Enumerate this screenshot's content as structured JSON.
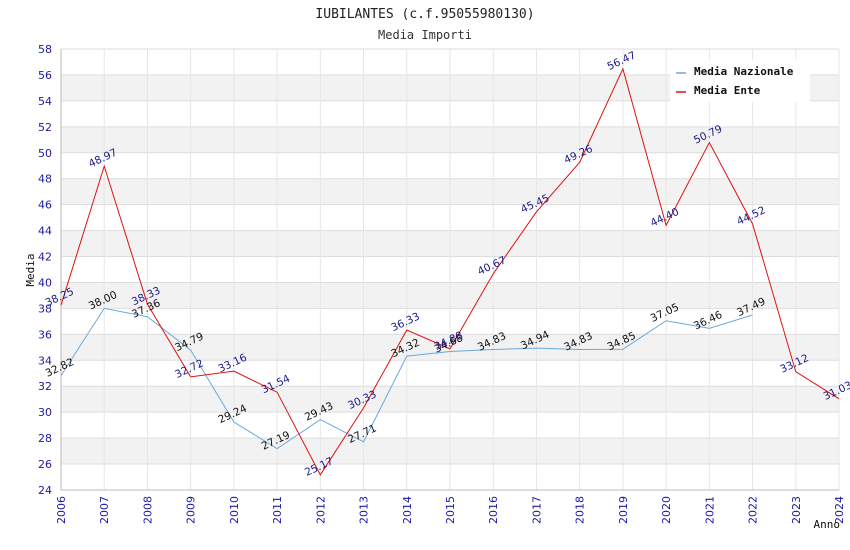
{
  "chart_data": {
    "type": "line",
    "title": "IUBILANTES (c.f.95055980130)",
    "subtitle": "Media Importi",
    "xlabel": "Anno",
    "ylabel": "Media",
    "ylim": [
      24,
      58
    ],
    "ytick_step": 2,
    "x": [
      "2006",
      "2007",
      "2008",
      "2009",
      "2010",
      "2011",
      "2012",
      "2013",
      "2014",
      "2015",
      "2016",
      "2017",
      "2018",
      "2019",
      "2020",
      "2021",
      "2022",
      "2023",
      "2024"
    ],
    "legend_position": "top-right",
    "series": [
      {
        "name": "Media Nazionale",
        "color": "#6aa8e0",
        "values": [
          32.82,
          38.0,
          37.36,
          34.79,
          29.24,
          27.19,
          29.43,
          27.71,
          34.32,
          34.68,
          34.83,
          34.94,
          34.83,
          34.85,
          37.05,
          36.46,
          37.49,
          null,
          null
        ],
        "labels": [
          "32.82",
          "38.00",
          "37.36",
          "34.79",
          "29.24",
          "27.19",
          "29.43",
          "27.71",
          "34.32",
          "34.68",
          "34.83",
          "34.94",
          "34.83",
          "34.85",
          "37.05",
          "36.46",
          "37.49",
          null,
          null
        ]
      },
      {
        "name": "Media Ente",
        "color": "#e01010",
        "values": [
          38.25,
          48.97,
          38.33,
          32.72,
          33.16,
          31.54,
          25.17,
          30.33,
          36.33,
          34.88,
          40.67,
          45.45,
          49.26,
          56.47,
          44.4,
          50.79,
          44.52,
          33.12,
          31.03
        ],
        "labels": [
          "38.25",
          "48.97",
          "38.33",
          "32.72",
          "33.16",
          "31.54",
          "25.17",
          "30.33",
          "36.33",
          "34.88",
          "40.67",
          "45.45",
          "49.26",
          "56.47",
          "44.40",
          "50.79",
          "44.52",
          "33.12",
          "31.03"
        ]
      }
    ]
  }
}
